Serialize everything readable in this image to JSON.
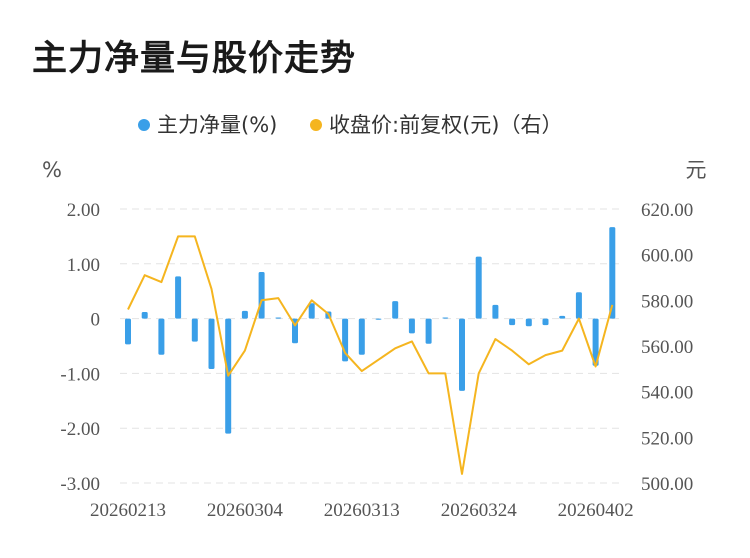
{
  "chart_data": {
    "type": "bar+line",
    "title": "主力净量与股价走势",
    "left_unit": "%",
    "right_unit": "元",
    "legend": [
      "主力净量(%)",
      "收盘价:前复权(元)（右）"
    ],
    "legend_position": "top-center",
    "colors": {
      "bar": "#3a9fe8",
      "line": "#f5b51f",
      "grid": "#e3e3e3"
    },
    "y_left": {
      "range": [
        -3,
        2
      ],
      "ticks": [
        "2.00",
        "1.00",
        "0",
        "-1.00",
        "-2.00",
        "-3.00"
      ]
    },
    "y_right": {
      "range": [
        500,
        620
      ],
      "ticks": [
        "620.00",
        "600.00",
        "580.00",
        "560.00",
        "540.00",
        "520.00",
        "500.00"
      ]
    },
    "x_tick_labels": [
      "20260213",
      "20260304",
      "20260313",
      "20260324",
      "20260402"
    ],
    "x_tick_indices": [
      0,
      7,
      14,
      21,
      28
    ],
    "series": [
      {
        "name": "主力净量(%)",
        "kind": "bar",
        "axis": "left",
        "values": [
          -0.47,
          0.12,
          -0.66,
          0.77,
          -0.42,
          -0.92,
          -2.1,
          0.14,
          0.85,
          0.02,
          -0.45,
          0.28,
          0.13,
          -0.78,
          -0.66,
          -0.02,
          0.32,
          -0.27,
          -0.46,
          0.02,
          -1.32,
          1.13,
          0.25,
          -0.12,
          -0.14,
          -0.12,
          0.05,
          0.48,
          -0.86,
          1.67
        ]
      },
      {
        "name": "收盘价:前复权(元)（右）",
        "kind": "line",
        "axis": "right",
        "values": [
          576,
          591,
          588,
          608,
          608,
          585,
          547,
          558,
          580,
          581,
          569,
          580,
          574,
          557,
          549,
          554,
          559,
          562,
          548,
          548,
          504,
          548,
          563,
          558,
          552,
          556,
          558,
          572,
          551,
          578
        ]
      }
    ]
  }
}
